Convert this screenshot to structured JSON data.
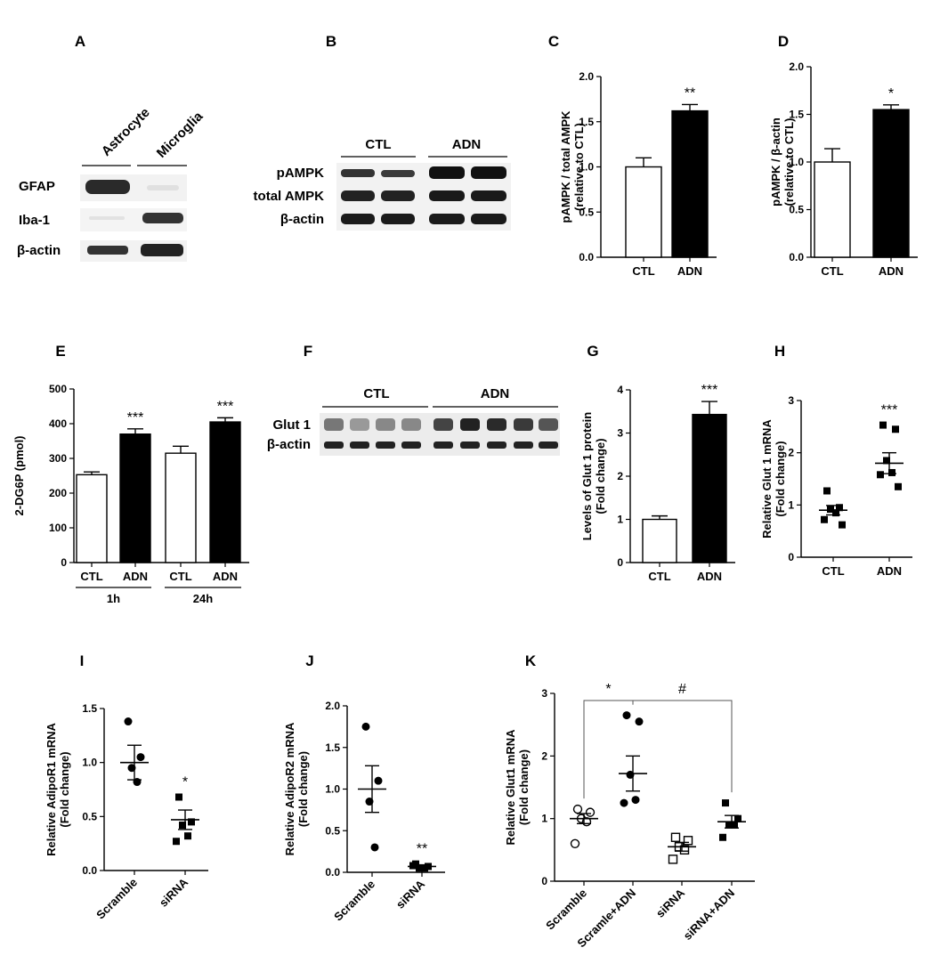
{
  "panels": {
    "A": {
      "label": "A",
      "columns": [
        "Astrocyte",
        "Microglia"
      ],
      "rows": [
        "GFAP",
        "Iba-1",
        "β-actin"
      ]
    },
    "B": {
      "label": "B",
      "groups": [
        "CTL",
        "ADN"
      ],
      "rows": [
        "pAMPK",
        "total AMPK",
        "β-actin"
      ]
    },
    "F": {
      "label": "F",
      "groups": [
        "CTL",
        "ADN"
      ],
      "rows": [
        "Glut 1",
        "β-actin"
      ]
    }
  },
  "chart_data": [
    {
      "id": "C",
      "label": "C",
      "type": "bar",
      "categories": [
        "CTL",
        "ADN"
      ],
      "values": [
        1.0,
        1.62
      ],
      "errors": [
        0.1,
        0.07
      ],
      "fills": [
        "#ffffff",
        "#000000"
      ],
      "ylabel": [
        "pAMPK / total AMPK",
        "(relative to CTL)"
      ],
      "ylim": [
        0,
        2.0
      ],
      "yticks": [
        "0.0",
        "0.5",
        "1.0",
        "1.5",
        "2.0"
      ],
      "significance": [
        {
          "category": 1,
          "text": "**"
        }
      ]
    },
    {
      "id": "D",
      "label": "D",
      "type": "bar",
      "categories": [
        "CTL",
        "ADN"
      ],
      "values": [
        1.0,
        1.55
      ],
      "errors": [
        0.14,
        0.05
      ],
      "fills": [
        "#ffffff",
        "#000000"
      ],
      "ylabel": [
        "pAMPK / β-actin",
        "(relative to CTL)"
      ],
      "ylim": [
        0,
        2.0
      ],
      "yticks": [
        "0.0",
        "0.5",
        "1.0",
        "1.5",
        "2.0"
      ],
      "significance": [
        {
          "category": 1,
          "text": "*"
        }
      ]
    },
    {
      "id": "E",
      "label": "E",
      "type": "bar",
      "categories": [
        "CTL",
        "ADN",
        "CTL",
        "ADN"
      ],
      "groups": [
        "1h",
        "24h"
      ],
      "values": [
        253,
        370,
        315,
        405
      ],
      "errors": [
        8,
        15,
        20,
        12
      ],
      "fills": [
        "#ffffff",
        "#000000",
        "#ffffff",
        "#000000"
      ],
      "ylabel": [
        "2-DG6P (pmol)"
      ],
      "ylim": [
        0,
        500
      ],
      "yticks": [
        "0",
        "100",
        "200",
        "300",
        "400",
        "500"
      ],
      "significance": [
        {
          "category": 1,
          "text": "***"
        },
        {
          "category": 3,
          "text": "***"
        }
      ]
    },
    {
      "id": "G",
      "label": "G",
      "type": "bar",
      "categories": [
        "CTL",
        "ADN"
      ],
      "values": [
        1.0,
        3.43
      ],
      "errors": [
        0.08,
        0.3
      ],
      "fills": [
        "#ffffff",
        "#000000"
      ],
      "ylabel": [
        "Levels of Glut 1 protein",
        "(Fold change)"
      ],
      "ylim": [
        0,
        4
      ],
      "yticks": [
        "0",
        "1",
        "2",
        "3",
        "4"
      ],
      "significance": [
        {
          "category": 1,
          "text": "***"
        }
      ]
    },
    {
      "id": "H",
      "label": "H",
      "type": "scatter",
      "categories": [
        "CTL",
        "ADN"
      ],
      "markers": [
        "square",
        "square"
      ],
      "points": [
        [
          1.27,
          0.95,
          0.92,
          0.85,
          0.72,
          0.62
        ],
        [
          2.53,
          2.45,
          1.85,
          1.62,
          1.58,
          1.35
        ]
      ],
      "means": [
        0.9,
        1.8
      ],
      "sems": [
        0.09,
        0.2
      ],
      "ylabel": [
        "Relative Glut 1 mRNA",
        "(Fold change)"
      ],
      "ylim": [
        0,
        3
      ],
      "yticks": [
        "0",
        "1",
        "2",
        "3"
      ],
      "significance": [
        {
          "category": 1,
          "text": "***"
        }
      ]
    },
    {
      "id": "I",
      "label": "I",
      "type": "scatter",
      "categories": [
        "Scramble",
        "siRNA"
      ],
      "markers": [
        "circle",
        "square"
      ],
      "points": [
        [
          1.38,
          1.05,
          0.95,
          0.82
        ],
        [
          0.68,
          0.45,
          0.42,
          0.32,
          0.27
        ]
      ],
      "means": [
        1.0,
        0.47
      ],
      "sems": [
        0.16,
        0.09
      ],
      "ylabel": [
        "Relative AdipoR1 mRNA",
        "(Fold change)"
      ],
      "ylim": [
        0,
        1.5
      ],
      "yticks": [
        "0.0",
        "0.5",
        "1.0",
        "1.5"
      ],
      "significance": [
        {
          "category": 1,
          "text": "*"
        }
      ]
    },
    {
      "id": "J",
      "label": "J",
      "type": "scatter",
      "categories": [
        "Scramble",
        "siRNA"
      ],
      "markers": [
        "circle",
        "square"
      ],
      "points": [
        [
          1.75,
          1.1,
          0.85,
          0.3
        ],
        [
          0.1,
          0.07,
          0.05,
          0.05,
          0.08
        ]
      ],
      "means": [
        1.0,
        0.07
      ],
      "sems": [
        0.28,
        0.02
      ],
      "ylabel": [
        "Relative AdipoR2 mRNA",
        "(Fold change)"
      ],
      "ylim": [
        0,
        2.0
      ],
      "yticks": [
        "0.0",
        "0.5",
        "1.0",
        "1.5",
        "2.0"
      ],
      "significance": [
        {
          "category": 1,
          "text": "**"
        }
      ]
    },
    {
      "id": "K",
      "label": "K",
      "type": "scatter",
      "categories": [
        "Scramble",
        "Scramle+ADN",
        "siRNA",
        "siRNA+ADN"
      ],
      "markers": [
        "circle-open",
        "circle",
        "square-open",
        "square"
      ],
      "points": [
        [
          1.15,
          1.1,
          1.0,
          0.95,
          0.6
        ],
        [
          2.65,
          2.55,
          1.7,
          1.3,
          1.25
        ],
        [
          0.7,
          0.65,
          0.55,
          0.5,
          0.35
        ],
        [
          1.25,
          1.0,
          0.9,
          0.9,
          0.7
        ]
      ],
      "means": [
        1.0,
        1.72,
        0.55,
        0.95
      ],
      "sems": [
        0.08,
        0.28,
        0.07,
        0.1
      ],
      "ylabel": [
        "Relative Glut1 mRNA",
        "(Fold change)"
      ],
      "ylim": [
        0,
        3
      ],
      "yticks": [
        "0",
        "1",
        "2",
        "3"
      ],
      "brackets": [
        {
          "from": 0,
          "to": 1,
          "text": "*"
        },
        {
          "from": 1,
          "to": 3,
          "text": "#"
        }
      ]
    }
  ]
}
